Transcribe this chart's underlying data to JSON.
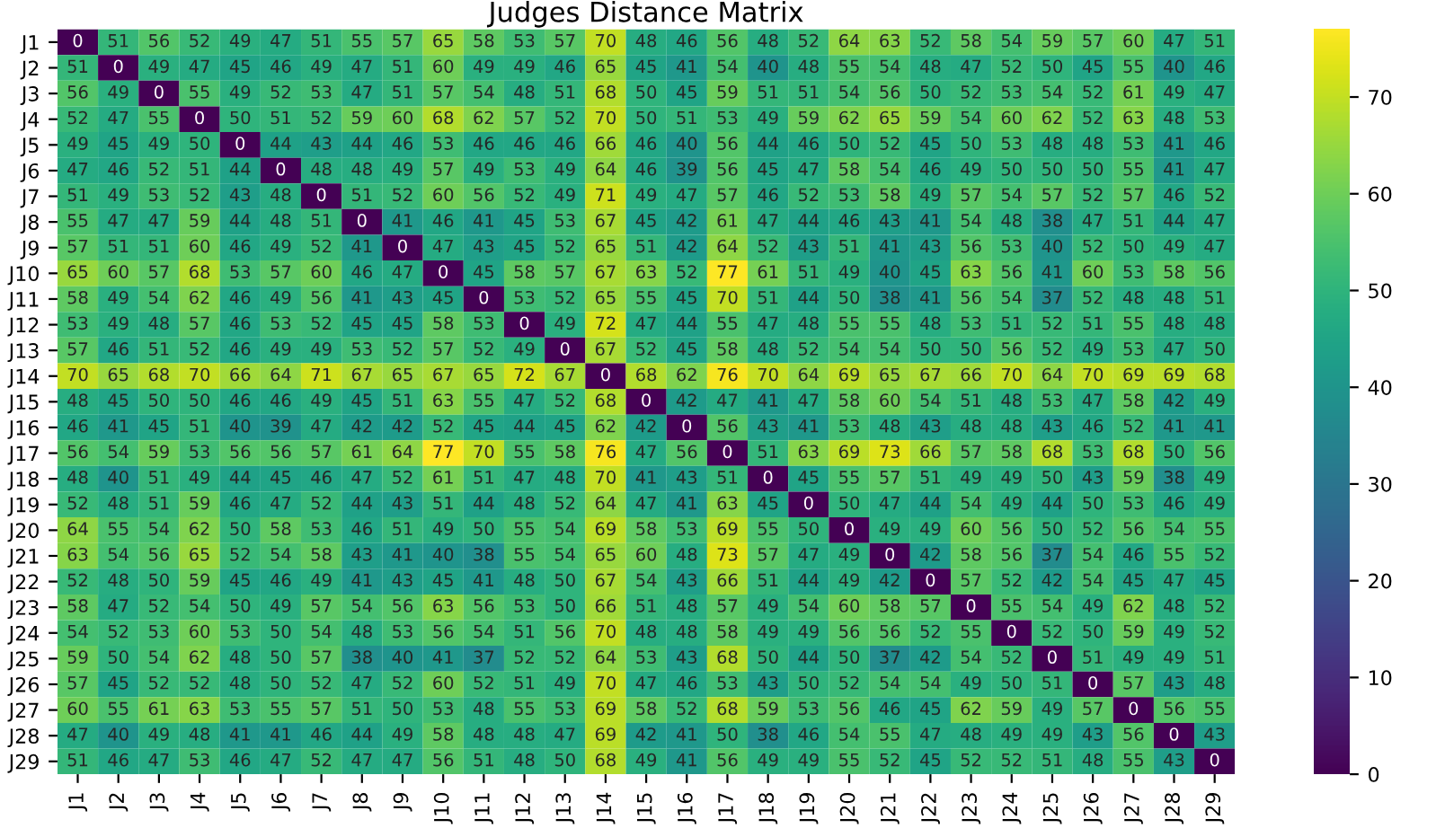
{
  "chart_data": {
    "type": "heatmap",
    "title": "Judges Distance Matrix",
    "categories": [
      "J1",
      "J2",
      "J3",
      "J4",
      "J5",
      "J6",
      "J7",
      "J8",
      "J9",
      "J10",
      "J11",
      "J12",
      "J13",
      "J14",
      "J15",
      "J16",
      "J17",
      "J18",
      "J19",
      "J20",
      "J21",
      "J22",
      "J23",
      "J24",
      "J25",
      "J26",
      "J27",
      "J28",
      "J29"
    ],
    "y_categories": [
      "J1",
      "J2",
      "J3",
      "J4",
      "J5",
      "J6",
      "J7",
      "J8",
      "J9",
      "J10",
      "J11",
      "J12",
      "J13",
      "J14",
      "J15",
      "J16",
      "J17",
      "J18",
      "J19",
      "J20",
      "J21",
      "J22",
      "J23",
      "J24",
      "J25",
      "J26",
      "J27",
      "J28",
      "J29"
    ],
    "cells": [
      [
        0,
        51,
        56,
        52,
        49,
        47,
        51,
        55,
        57,
        65,
        58,
        53,
        57,
        70,
        48,
        46,
        56,
        48,
        52,
        64,
        63,
        52,
        58,
        54,
        59,
        57,
        60,
        47,
        51
      ],
      [
        51,
        0,
        49,
        47,
        45,
        46,
        49,
        47,
        51,
        60,
        49,
        49,
        46,
        65,
        45,
        41,
        54,
        40,
        48,
        55,
        54,
        48,
        47,
        52,
        50,
        45,
        55,
        40,
        46
      ],
      [
        56,
        49,
        0,
        55,
        49,
        52,
        53,
        47,
        51,
        57,
        54,
        48,
        51,
        68,
        50,
        45,
        59,
        51,
        51,
        54,
        56,
        50,
        52,
        53,
        54,
        52,
        61,
        49,
        47
      ],
      [
        52,
        47,
        55,
        0,
        50,
        51,
        52,
        59,
        60,
        68,
        62,
        57,
        52,
        70,
        50,
        51,
        53,
        49,
        59,
        62,
        65,
        59,
        54,
        60,
        62,
        52,
        63,
        48,
        53
      ],
      [
        49,
        45,
        49,
        50,
        0,
        44,
        43,
        44,
        46,
        53,
        46,
        46,
        46,
        66,
        46,
        40,
        56,
        44,
        46,
        50,
        52,
        45,
        50,
        53,
        48,
        48,
        53,
        41,
        46
      ],
      [
        47,
        46,
        52,
        51,
        44,
        0,
        48,
        48,
        49,
        57,
        49,
        53,
        49,
        64,
        46,
        39,
        56,
        45,
        47,
        58,
        54,
        46,
        49,
        50,
        50,
        50,
        55,
        41,
        47
      ],
      [
        51,
        49,
        53,
        52,
        43,
        48,
        0,
        51,
        52,
        60,
        56,
        52,
        49,
        71,
        49,
        47,
        57,
        46,
        52,
        53,
        58,
        49,
        57,
        54,
        57,
        52,
        57,
        46,
        52
      ],
      [
        55,
        47,
        47,
        59,
        44,
        48,
        51,
        0,
        41,
        46,
        41,
        45,
        53,
        67,
        45,
        42,
        61,
        47,
        44,
        46,
        43,
        41,
        54,
        48,
        38,
        47,
        51,
        44,
        47
      ],
      [
        57,
        51,
        51,
        60,
        46,
        49,
        52,
        41,
        0,
        47,
        43,
        45,
        52,
        65,
        51,
        42,
        64,
        52,
        43,
        51,
        41,
        43,
        56,
        53,
        40,
        52,
        50,
        49,
        47
      ],
      [
        65,
        60,
        57,
        68,
        53,
        57,
        60,
        46,
        47,
        0,
        45,
        58,
        57,
        67,
        63,
        52,
        77,
        61,
        51,
        49,
        40,
        45,
        63,
        56,
        41,
        60,
        53,
        58,
        56
      ],
      [
        58,
        49,
        54,
        62,
        46,
        49,
        56,
        41,
        43,
        45,
        0,
        53,
        52,
        65,
        55,
        45,
        70,
        51,
        44,
        50,
        38,
        41,
        56,
        54,
        37,
        52,
        48,
        48,
        51
      ],
      [
        53,
        49,
        48,
        57,
        46,
        53,
        52,
        45,
        45,
        58,
        53,
        0,
        49,
        72,
        47,
        44,
        55,
        47,
        48,
        55,
        55,
        48,
        53,
        51,
        52,
        51,
        55,
        48,
        48
      ],
      [
        57,
        46,
        51,
        52,
        46,
        49,
        49,
        53,
        52,
        57,
        52,
        49,
        0,
        67,
        52,
        45,
        58,
        48,
        52,
        54,
        54,
        50,
        50,
        56,
        52,
        49,
        53,
        47,
        50
      ],
      [
        70,
        65,
        68,
        70,
        66,
        64,
        71,
        67,
        65,
        67,
        65,
        72,
        67,
        0,
        68,
        62,
        76,
        70,
        64,
        69,
        65,
        67,
        66,
        70,
        64,
        70,
        69,
        69,
        68
      ],
      [
        48,
        45,
        50,
        50,
        46,
        46,
        49,
        45,
        51,
        63,
        55,
        47,
        52,
        68,
        0,
        42,
        47,
        41,
        47,
        58,
        60,
        54,
        51,
        48,
        53,
        47,
        58,
        42,
        49
      ],
      [
        46,
        41,
        45,
        51,
        40,
        39,
        47,
        42,
        42,
        52,
        45,
        44,
        45,
        62,
        42,
        0,
        56,
        43,
        41,
        53,
        48,
        43,
        48,
        48,
        43,
        46,
        52,
        41,
        41
      ],
      [
        56,
        54,
        59,
        53,
        56,
        56,
        57,
        61,
        64,
        77,
        70,
        55,
        58,
        76,
        47,
        56,
        0,
        51,
        63,
        69,
        73,
        66,
        57,
        58,
        68,
        53,
        68,
        50,
        56
      ],
      [
        48,
        40,
        51,
        49,
        44,
        45,
        46,
        47,
        52,
        61,
        51,
        47,
        48,
        70,
        41,
        43,
        51,
        0,
        45,
        55,
        57,
        51,
        49,
        49,
        50,
        43,
        59,
        38,
        49
      ],
      [
        52,
        48,
        51,
        59,
        46,
        47,
        52,
        44,
        43,
        51,
        44,
        48,
        52,
        64,
        47,
        41,
        63,
        45,
        0,
        50,
        47,
        44,
        54,
        49,
        44,
        50,
        53,
        46,
        49
      ],
      [
        64,
        55,
        54,
        62,
        50,
        58,
        53,
        46,
        51,
        49,
        50,
        55,
        54,
        69,
        58,
        53,
        69,
        55,
        50,
        0,
        49,
        49,
        60,
        56,
        50,
        52,
        56,
        54,
        55
      ],
      [
        63,
        54,
        56,
        65,
        52,
        54,
        58,
        43,
        41,
        40,
        38,
        55,
        54,
        65,
        60,
        48,
        73,
        57,
        47,
        49,
        0,
        42,
        58,
        56,
        37,
        54,
        46,
        55,
        52
      ],
      [
        52,
        48,
        50,
        59,
        45,
        46,
        49,
        41,
        43,
        45,
        41,
        48,
        50,
        67,
        54,
        43,
        66,
        51,
        44,
        49,
        42,
        0,
        57,
        52,
        42,
        54,
        45,
        47,
        45
      ],
      [
        58,
        47,
        52,
        54,
        50,
        49,
        57,
        54,
        56,
        63,
        56,
        53,
        50,
        66,
        51,
        48,
        57,
        49,
        54,
        60,
        58,
        57,
        0,
        55,
        54,
        49,
        62,
        48,
        52
      ],
      [
        54,
        52,
        53,
        60,
        53,
        50,
        54,
        48,
        53,
        56,
        54,
        51,
        56,
        70,
        48,
        48,
        58,
        49,
        49,
        56,
        56,
        52,
        55,
        0,
        52,
        50,
        59,
        49,
        52
      ],
      [
        59,
        50,
        54,
        62,
        48,
        50,
        57,
        38,
        40,
        41,
        37,
        52,
        52,
        64,
        53,
        43,
        68,
        50,
        44,
        50,
        37,
        42,
        54,
        52,
        0,
        51,
        49,
        49,
        51
      ],
      [
        57,
        45,
        52,
        52,
        48,
        50,
        52,
        47,
        52,
        60,
        52,
        51,
        49,
        70,
        47,
        46,
        53,
        43,
        50,
        52,
        54,
        54,
        49,
        50,
        51,
        0,
        57,
        43,
        48
      ],
      [
        60,
        55,
        61,
        63,
        53,
        55,
        57,
        51,
        50,
        53,
        48,
        55,
        53,
        69,
        58,
        52,
        68,
        59,
        53,
        56,
        46,
        45,
        62,
        59,
        49,
        57,
        0,
        56,
        55
      ],
      [
        47,
        40,
        49,
        48,
        41,
        41,
        46,
        44,
        49,
        58,
        48,
        48,
        47,
        69,
        42,
        41,
        50,
        38,
        46,
        54,
        55,
        47,
        48,
        49,
        49,
        43,
        56,
        0,
        43
      ],
      [
        51,
        46,
        47,
        53,
        46,
        47,
        52,
        47,
        47,
        56,
        51,
        48,
        50,
        68,
        49,
        41,
        56,
        49,
        49,
        55,
        52,
        45,
        52,
        52,
        51,
        48,
        55,
        43,
        0
      ]
    ],
    "clim": [
      0,
      77
    ],
    "cticks": [
      0,
      10,
      20,
      30,
      40,
      50,
      60,
      70
    ],
    "data_labels": true
  }
}
